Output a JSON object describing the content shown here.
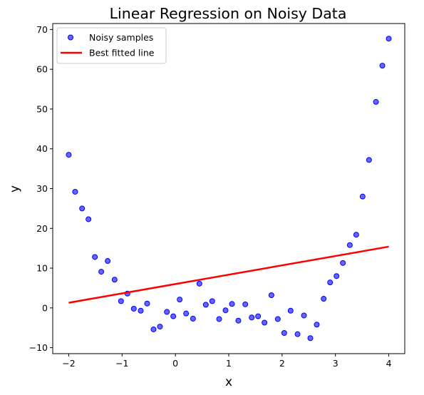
{
  "chart_data": {
    "type": "scatter",
    "title": "Linear Regression on Noisy Data",
    "xlabel": "x",
    "ylabel": "y",
    "xlim": [
      -2.3,
      4.3
    ],
    "ylim": [
      -11.5,
      71.5
    ],
    "xticks": [
      -2,
      -1,
      0,
      1,
      2,
      3,
      4
    ],
    "yticks": [
      -10,
      0,
      10,
      20,
      30,
      40,
      50,
      60,
      70
    ],
    "grid": false,
    "legend_position": "top-left",
    "series": [
      {
        "name": "Noisy samples",
        "kind": "scatter",
        "color": "#0000ff",
        "x": [
          -2.0,
          -1.88,
          -1.75,
          -1.63,
          -1.51,
          -1.39,
          -1.27,
          -1.14,
          -1.02,
          -0.9,
          -0.78,
          -0.65,
          -0.53,
          -0.41,
          -0.29,
          -0.16,
          -0.04,
          0.08,
          0.2,
          0.33,
          0.45,
          0.57,
          0.69,
          0.82,
          0.94,
          1.06,
          1.18,
          1.31,
          1.43,
          1.55,
          1.67,
          1.8,
          1.92,
          2.04,
          2.16,
          2.29,
          2.41,
          2.53,
          2.65,
          2.78,
          2.9,
          3.02,
          3.14,
          3.27,
          3.39,
          3.51,
          3.63,
          3.76,
          3.88,
          4.0
        ],
        "y": [
          38.5,
          29.2,
          25.0,
          22.3,
          12.8,
          9.1,
          11.8,
          7.1,
          1.7,
          3.6,
          -0.2,
          -0.7,
          1.1,
          -5.4,
          -4.7,
          -1.0,
          -2.1,
          2.1,
          -1.4,
          -2.7,
          6.1,
          0.8,
          1.7,
          -2.8,
          -0.6,
          1.0,
          -3.2,
          0.9,
          -2.4,
          -2.1,
          -3.7,
          3.2,
          -2.8,
          -6.3,
          -0.7,
          -6.6,
          -1.9,
          -7.6,
          -4.2,
          2.3,
          6.4,
          8.0,
          11.3,
          15.8,
          18.4,
          28.0,
          37.2,
          51.8,
          60.9,
          67.7
        ]
      },
      {
        "name": "Best fitted line",
        "kind": "line",
        "color": "#ff0000",
        "x": [
          -2.0,
          4.0
        ],
        "y": [
          1.3,
          15.4
        ]
      }
    ]
  }
}
